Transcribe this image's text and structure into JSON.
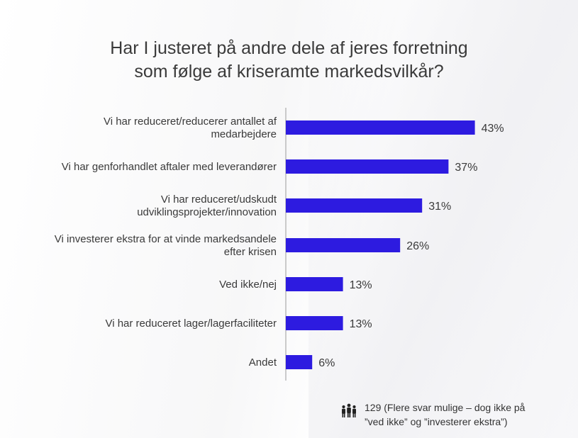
{
  "title_lines": [
    "Har I justeret på andre dele af jeres forretning",
    "som følge af kriseramte markedsvilkår?"
  ],
  "respondents_note_lines": [
    "129 (Flere svar mulige – dog ikke på",
    "”ved ikke” og ”investerer ekstra”)"
  ],
  "colors": {
    "bar": "#2d1be0",
    "axis": "#9a9a9a",
    "text": "#3a3a3a"
  },
  "chart_data": {
    "type": "bar",
    "orientation": "horizontal",
    "categories": [
      "Vi har reduceret/reducerer antallet af medarbejdere",
      "Vi har genforhandlet aftaler med leverandører",
      "Vi har reduceret/udskudt udviklingsprojekter/innovation",
      "Vi investerer ekstra for at vinde markedsandele efter krisen",
      "Ved ikke/nej",
      "Vi har reduceret lager/lagerfaciliteter",
      "Andet"
    ],
    "category_label_lines": [
      [
        "Vi har reduceret/reducerer antallet af",
        "medarbejdere"
      ],
      [
        "Vi har genforhandlet aftaler med leverandører"
      ],
      [
        "Vi har reduceret/udskudt",
        "udviklingsprojekter/innovation"
      ],
      [
        "Vi investerer ekstra for at vinde markedsandele",
        "efter krisen"
      ],
      [
        "Ved ikke/nej"
      ],
      [
        "Vi har reduceret lager/lagerfaciliteter"
      ],
      [
        "Andet"
      ]
    ],
    "values": [
      43,
      37,
      31,
      26,
      13,
      13,
      6
    ],
    "value_labels": [
      "43%",
      "37%",
      "31%",
      "26%",
      "13%",
      "13%",
      "6%"
    ],
    "unit": "%",
    "xlim": [
      0,
      100
    ],
    "grid": false,
    "legend": "none"
  }
}
